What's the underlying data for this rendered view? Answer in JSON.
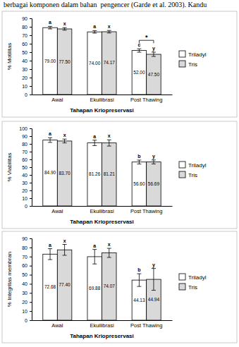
{
  "page_text": "berbagai komponen dalam bahan  pengencer (Garde et al. 2003). Kandu",
  "chart_data": [
    {
      "type": "bar",
      "x_label": "Tahapan Kriopreservasi",
      "y_label": "% Motilitas",
      "categories": [
        "Awal",
        "Ekuilibrasi",
        "Post Thawing"
      ],
      "series": [
        {
          "name": "Triladyl",
          "color": "#ffffff",
          "values": [
            79.0,
            74.0,
            52.0
          ],
          "value_labels": [
            "79.00",
            "74.00",
            "52.00"
          ],
          "errors": [
            1.5,
            1.5,
            2.0
          ],
          "significance": [
            "a",
            "a",
            "c"
          ]
        },
        {
          "name": "Tris",
          "color": "#d9d9d9",
          "values": [
            77.5,
            74.17,
            47.5
          ],
          "value_labels": [
            "77.50",
            "74.17",
            "47.50"
          ],
          "errors": [
            1.5,
            1.5,
            2.5
          ],
          "significance": [
            "x",
            "x",
            "y"
          ]
        }
      ],
      "annotations": [
        {
          "text": "*",
          "category": "Post Thawing"
        }
      ],
      "ylim": [
        0,
        90
      ],
      "yticks": [
        0,
        10,
        20,
        30,
        40,
        50,
        60,
        70,
        80,
        90
      ],
      "grid": false,
      "legend": "right",
      "data_labels": true
    },
    {
      "type": "bar",
      "x_label": "Tahapan Kriopreservasi",
      "y_label": "% Viabilitas",
      "categories": [
        "Awal",
        "Ekuilibrasi",
        "Post Thawing"
      ],
      "series": [
        {
          "name": "Triladyl",
          "color": "#ffffff",
          "values": [
            84.9,
            81.26,
            56.6
          ],
          "value_labels": [
            "84.90",
            "81.26",
            "56.60"
          ],
          "errors": [
            3.0,
            3.5,
            2.5
          ],
          "significance": [
            "a",
            "a",
            "b"
          ]
        },
        {
          "name": "Tris",
          "color": "#d9d9d9",
          "values": [
            83.7,
            81.21,
            56.69
          ],
          "value_labels": [
            "83.70",
            "81.21",
            "56.69"
          ],
          "errors": [
            2.5,
            4.0,
            2.5
          ],
          "significance": [
            "x",
            "x",
            "y"
          ]
        }
      ],
      "ylim": [
        0,
        100
      ],
      "yticks": [
        0,
        10,
        20,
        30,
        40,
        50,
        60,
        70,
        80,
        90,
        100
      ],
      "grid": false,
      "legend": "right",
      "data_labels": true
    },
    {
      "type": "bar",
      "x_label": "Tahapan Kriopreservasi",
      "y_label": "% Integritas membran",
      "categories": [
        "Awal",
        "Ekuilibrasi",
        "Post Thawing"
      ],
      "series": [
        {
          "name": "Triladyl",
          "color": "#ffffff",
          "values": [
            72.68,
            69.88,
            44.13
          ],
          "value_labels": [
            "72.68",
            "69.88",
            "44.13"
          ],
          "errors": [
            6.0,
            8.0,
            7.0
          ],
          "significance": [
            "a",
            "a",
            "b"
          ]
        },
        {
          "name": "Tris",
          "color": "#d9d9d9",
          "values": [
            77.4,
            74.07,
            44.94
          ],
          "value_labels": [
            "77.40",
            "74.07",
            "44.94"
          ],
          "errors": [
            6.0,
            5.0,
            12.0
          ],
          "significance": [
            "x",
            "x",
            "y"
          ]
        }
      ],
      "ylim": [
        0,
        90
      ],
      "yticks": [
        0,
        10,
        20,
        30,
        40,
        50,
        60,
        70,
        80,
        90
      ],
      "grid": false,
      "legend": "right",
      "data_labels": true
    }
  ]
}
